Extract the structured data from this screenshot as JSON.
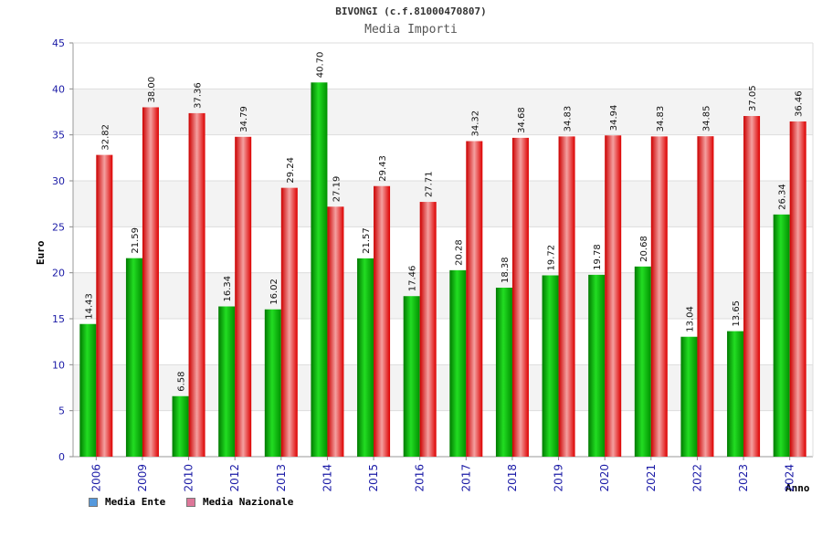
{
  "chart_data": {
    "type": "bar",
    "title": "BIVONGI (c.f.81000470807)",
    "subtitle": "Media Importi",
    "ylabel": "Euro",
    "xlabel": "Anno",
    "ylim": [
      0,
      45
    ],
    "yticks": [
      0,
      5,
      10,
      15,
      20,
      25,
      30,
      35,
      40,
      45
    ],
    "grid": true,
    "legend_position": "bottom-left",
    "categories": [
      "2006",
      "2009",
      "2010",
      "2012",
      "2013",
      "2014",
      "2015",
      "2016",
      "2017",
      "2018",
      "2019",
      "2020",
      "2021",
      "2022",
      "2023",
      "2024"
    ],
    "series": [
      {
        "name": "Media Ente",
        "color": "#00aa00",
        "legend_color": "#5599dd",
        "values": [
          14.43,
          21.59,
          6.58,
          16.34,
          16.02,
          40.7,
          21.57,
          17.46,
          20.28,
          18.38,
          19.72,
          19.78,
          20.68,
          13.04,
          13.65,
          26.34
        ]
      },
      {
        "name": "Media Nazionale",
        "color": "#ee1111",
        "legend_color": "#dd7799",
        "values": [
          32.82,
          38.0,
          37.36,
          34.79,
          29.24,
          27.19,
          29.43,
          27.71,
          34.32,
          34.68,
          34.83,
          34.94,
          34.83,
          34.85,
          37.05,
          36.46
        ]
      }
    ]
  }
}
